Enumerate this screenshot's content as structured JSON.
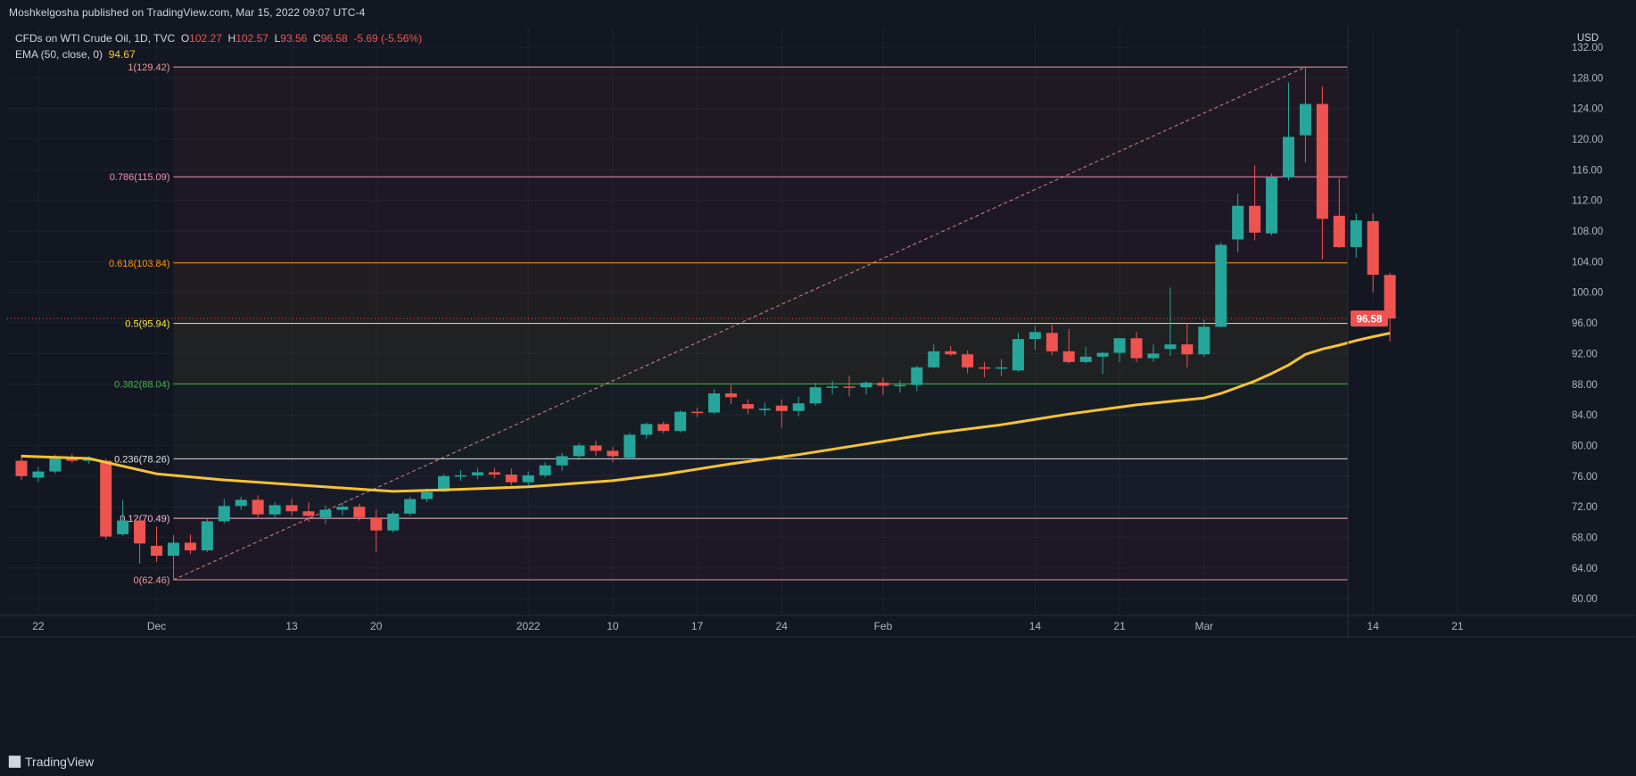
{
  "publisher_line": "Moshkelgosha published on TradingView.com, Mar 15, 2022 09:07 UTC-4",
  "legend": {
    "symbol": "CFDs on WTI Crude Oil, 1D, TVC",
    "open_label": "O",
    "open": "102.27",
    "high_label": "H",
    "high": "102.57",
    "low_label": "L",
    "low": "93.56",
    "close_label": "C",
    "close": "96.58",
    "change": "-5.69 (-5.56%)",
    "ema_label": "EMA (50, close, 0)",
    "ema_value": "94.67"
  },
  "currency": "USD",
  "last_price": "96.58",
  "brand": "TradingView",
  "colors": {
    "background": "#131722",
    "up": "#26a69a",
    "down": "#ef5350",
    "ema": "#f7c234",
    "grid": "#1e222d",
    "text": "#b2b5be"
  },
  "chart_data": {
    "type": "candlestick",
    "title": "",
    "ylim": [
      57.8,
      134.8
    ],
    "yticks": [
      60,
      64,
      68,
      72,
      76,
      80,
      84,
      88,
      92,
      96,
      100,
      104,
      108,
      112,
      116,
      120,
      124,
      128,
      132
    ],
    "xticks": [
      {
        "index": 1,
        "label": "22"
      },
      {
        "index": 8,
        "label": "Dec"
      },
      {
        "index": 16,
        "label": "13"
      },
      {
        "index": 21,
        "label": "20"
      },
      {
        "index": 30,
        "label": "2022"
      },
      {
        "index": 35,
        "label": "10"
      },
      {
        "index": 40,
        "label": "17"
      },
      {
        "index": 45,
        "label": "24"
      },
      {
        "index": 51,
        "label": "Feb"
      },
      {
        "index": 60,
        "label": "14"
      },
      {
        "index": 65,
        "label": "21"
      },
      {
        "index": 70,
        "label": "Mar"
      },
      {
        "index": 80,
        "label": "14"
      },
      {
        "index": 85,
        "label": "21"
      }
    ],
    "candles": [
      {
        "i": 0,
        "o": 78.0,
        "h": 78.8,
        "l": 75.5,
        "c": 76.0
      },
      {
        "i": 1,
        "o": 75.8,
        "h": 77.2,
        "l": 75.2,
        "c": 76.6
      },
      {
        "i": 2,
        "o": 76.6,
        "h": 78.8,
        "l": 76.3,
        "c": 78.4
      },
      {
        "i": 3,
        "o": 78.4,
        "h": 78.9,
        "l": 77.7,
        "c": 78.0
      },
      {
        "i": 4,
        "o": 78.0,
        "h": 78.6,
        "l": 77.6,
        "c": 78.2
      },
      {
        "i": 5,
        "o": 78.0,
        "h": 78.3,
        "l": 67.7,
        "c": 68.1
      },
      {
        "i": 6,
        "o": 68.4,
        "h": 72.9,
        "l": 68.2,
        "c": 70.2
      },
      {
        "i": 7,
        "o": 70.2,
        "h": 70.5,
        "l": 64.6,
        "c": 67.2
      },
      {
        "i": 8,
        "o": 66.9,
        "h": 69.4,
        "l": 64.8,
        "c": 65.6
      },
      {
        "i": 9,
        "o": 65.6,
        "h": 68.3,
        "l": 62.4,
        "c": 67.3
      },
      {
        "i": 10,
        "o": 67.3,
        "h": 68.4,
        "l": 65.8,
        "c": 66.3
      },
      {
        "i": 11,
        "o": 66.3,
        "h": 70.4,
        "l": 66.1,
        "c": 70.1
      },
      {
        "i": 12,
        "o": 70.1,
        "h": 73.0,
        "l": 69.8,
        "c": 72.1
      },
      {
        "i": 13,
        "o": 72.1,
        "h": 73.3,
        "l": 71.6,
        "c": 72.9
      },
      {
        "i": 14,
        "o": 72.9,
        "h": 73.5,
        "l": 70.6,
        "c": 71.0
      },
      {
        "i": 15,
        "o": 71.0,
        "h": 72.6,
        "l": 70.4,
        "c": 72.2
      },
      {
        "i": 16,
        "o": 72.2,
        "h": 73.0,
        "l": 70.8,
        "c": 71.4
      },
      {
        "i": 17,
        "o": 71.4,
        "h": 72.6,
        "l": 70.0,
        "c": 70.8
      },
      {
        "i": 18,
        "o": 70.6,
        "h": 72.2,
        "l": 69.7,
        "c": 71.6
      },
      {
        "i": 19,
        "o": 71.6,
        "h": 72.5,
        "l": 70.9,
        "c": 72.0
      },
      {
        "i": 20,
        "o": 72.0,
        "h": 72.4,
        "l": 70.2,
        "c": 70.6
      },
      {
        "i": 21,
        "o": 70.6,
        "h": 71.6,
        "l": 66.1,
        "c": 68.9
      },
      {
        "i": 22,
        "o": 68.9,
        "h": 71.4,
        "l": 68.6,
        "c": 71.1
      },
      {
        "i": 23,
        "o": 71.1,
        "h": 73.3,
        "l": 70.8,
        "c": 73.0
      },
      {
        "i": 24,
        "o": 73.0,
        "h": 74.4,
        "l": 72.6,
        "c": 73.9
      },
      {
        "i": 25,
        "o": 74.0,
        "h": 76.3,
        "l": 73.9,
        "c": 76.0
      },
      {
        "i": 26,
        "o": 76.0,
        "h": 76.8,
        "l": 75.4,
        "c": 76.1
      },
      {
        "i": 27,
        "o": 76.1,
        "h": 77.1,
        "l": 75.6,
        "c": 76.5
      },
      {
        "i": 28,
        "o": 76.5,
        "h": 77.1,
        "l": 75.7,
        "c": 76.2
      },
      {
        "i": 29,
        "o": 76.2,
        "h": 77.0,
        "l": 74.8,
        "c": 75.2
      },
      {
        "i": 30,
        "o": 75.2,
        "h": 76.6,
        "l": 74.8,
        "c": 76.1
      },
      {
        "i": 31,
        "o": 76.1,
        "h": 77.8,
        "l": 75.8,
        "c": 77.4
      },
      {
        "i": 32,
        "o": 77.4,
        "h": 79.0,
        "l": 76.7,
        "c": 78.6
      },
      {
        "i": 33,
        "o": 78.6,
        "h": 80.3,
        "l": 78.1,
        "c": 80.0
      },
      {
        "i": 34,
        "o": 80.0,
        "h": 80.6,
        "l": 78.6,
        "c": 79.3
      },
      {
        "i": 35,
        "o": 79.3,
        "h": 79.8,
        "l": 77.8,
        "c": 78.6
      },
      {
        "i": 36,
        "o": 78.4,
        "h": 81.6,
        "l": 78.2,
        "c": 81.4
      },
      {
        "i": 37,
        "o": 81.4,
        "h": 83.0,
        "l": 80.9,
        "c": 82.8
      },
      {
        "i": 38,
        "o": 82.8,
        "h": 83.1,
        "l": 81.6,
        "c": 81.9
      },
      {
        "i": 39,
        "o": 81.9,
        "h": 84.6,
        "l": 81.7,
        "c": 84.4
      },
      {
        "i": 40,
        "o": 84.4,
        "h": 84.9,
        "l": 83.7,
        "c": 84.3
      },
      {
        "i": 41,
        "o": 84.3,
        "h": 87.3,
        "l": 84.1,
        "c": 86.8
      },
      {
        "i": 42,
        "o": 86.8,
        "h": 87.9,
        "l": 85.4,
        "c": 86.3
      },
      {
        "i": 43,
        "o": 85.4,
        "h": 86.0,
        "l": 84.1,
        "c": 84.8
      },
      {
        "i": 44,
        "o": 84.6,
        "h": 85.6,
        "l": 83.9,
        "c": 84.8
      },
      {
        "i": 45,
        "o": 85.2,
        "h": 86.0,
        "l": 82.3,
        "c": 84.5
      },
      {
        "i": 46,
        "o": 84.5,
        "h": 86.4,
        "l": 83.8,
        "c": 85.5
      },
      {
        "i": 47,
        "o": 85.5,
        "h": 88.2,
        "l": 85.2,
        "c": 87.6
      },
      {
        "i": 48,
        "o": 87.6,
        "h": 88.4,
        "l": 86.7,
        "c": 87.7
      },
      {
        "i": 49,
        "o": 87.7,
        "h": 89.1,
        "l": 86.4,
        "c": 87.6
      },
      {
        "i": 50,
        "o": 87.6,
        "h": 88.4,
        "l": 86.7,
        "c": 88.2
      },
      {
        "i": 51,
        "o": 88.2,
        "h": 88.9,
        "l": 86.6,
        "c": 87.8
      },
      {
        "i": 52,
        "o": 87.8,
        "h": 88.5,
        "l": 86.9,
        "c": 87.9
      },
      {
        "i": 53,
        "o": 87.9,
        "h": 90.4,
        "l": 87.1,
        "c": 90.2
      },
      {
        "i": 54,
        "o": 90.2,
        "h": 93.2,
        "l": 90.1,
        "c": 92.3
      },
      {
        "i": 55,
        "o": 92.3,
        "h": 93.0,
        "l": 91.7,
        "c": 91.9
      },
      {
        "i": 56,
        "o": 91.9,
        "h": 92.4,
        "l": 89.4,
        "c": 90.2
      },
      {
        "i": 57,
        "o": 90.2,
        "h": 90.9,
        "l": 88.9,
        "c": 90.1
      },
      {
        "i": 58,
        "o": 90.1,
        "h": 91.3,
        "l": 89.1,
        "c": 90.2
      },
      {
        "i": 59,
        "o": 89.8,
        "h": 94.7,
        "l": 89.6,
        "c": 93.9
      },
      {
        "i": 60,
        "o": 93.9,
        "h": 95.6,
        "l": 92.5,
        "c": 94.8
      },
      {
        "i": 61,
        "o": 94.7,
        "h": 95.8,
        "l": 91.8,
        "c": 92.3
      },
      {
        "i": 62,
        "o": 92.3,
        "h": 95.2,
        "l": 90.7,
        "c": 90.9
      },
      {
        "i": 63,
        "o": 90.9,
        "h": 92.9,
        "l": 90.7,
        "c": 91.6
      },
      {
        "i": 64,
        "o": 91.6,
        "h": 92.2,
        "l": 89.3,
        "c": 92.1
      },
      {
        "i": 65,
        "o": 92.1,
        "h": 94.0,
        "l": 90.9,
        "c": 94.0
      },
      {
        "i": 66,
        "o": 94.0,
        "h": 94.8,
        "l": 90.9,
        "c": 91.4
      },
      {
        "i": 67,
        "o": 91.4,
        "h": 93.2,
        "l": 90.9,
        "c": 92.0
      },
      {
        "i": 68,
        "o": 92.6,
        "h": 100.6,
        "l": 91.7,
        "c": 93.2
      },
      {
        "i": 69,
        "o": 93.2,
        "h": 96.0,
        "l": 90.2,
        "c": 91.9
      },
      {
        "i": 70,
        "o": 91.9,
        "h": 96.4,
        "l": 91.6,
        "c": 95.5
      },
      {
        "i": 71,
        "o": 95.5,
        "h": 106.5,
        "l": 95.4,
        "c": 106.2
      },
      {
        "i": 72,
        "o": 106.9,
        "h": 112.9,
        "l": 105.2,
        "c": 111.3
      },
      {
        "i": 73,
        "o": 111.3,
        "h": 116.6,
        "l": 106.8,
        "c": 107.8
      },
      {
        "i": 74,
        "o": 107.7,
        "h": 115.5,
        "l": 107.4,
        "c": 115.0
      },
      {
        "i": 75,
        "o": 115.0,
        "h": 127.4,
        "l": 114.6,
        "c": 120.3
      },
      {
        "i": 76,
        "o": 120.5,
        "h": 129.4,
        "l": 117.0,
        "c": 124.6
      },
      {
        "i": 77,
        "o": 124.6,
        "h": 126.9,
        "l": 104.3,
        "c": 109.6
      },
      {
        "i": 78,
        "o": 110.0,
        "h": 114.9,
        "l": 105.8,
        "c": 105.9
      },
      {
        "i": 79,
        "o": 105.9,
        "h": 110.3,
        "l": 104.5,
        "c": 109.4
      },
      {
        "i": 80,
        "o": 109.3,
        "h": 110.3,
        "l": 100.0,
        "c": 102.3
      },
      {
        "i": 81,
        "o": 102.27,
        "h": 102.57,
        "l": 93.56,
        "c": 96.58
      }
    ],
    "ema": [
      [
        0,
        78.6
      ],
      [
        4,
        78.3
      ],
      [
        8,
        76.3
      ],
      [
        12,
        75.5
      ],
      [
        16,
        74.9
      ],
      [
        20,
        74.3
      ],
      [
        22,
        74.0
      ],
      [
        25,
        74.2
      ],
      [
        30,
        74.6
      ],
      [
        35,
        75.4
      ],
      [
        38,
        76.2
      ],
      [
        42,
        77.6
      ],
      [
        46,
        78.8
      ],
      [
        50,
        80.2
      ],
      [
        54,
        81.6
      ],
      [
        58,
        82.7
      ],
      [
        62,
        84.1
      ],
      [
        66,
        85.3
      ],
      [
        70,
        86.2
      ],
      [
        71,
        86.8
      ],
      [
        73,
        88.4
      ],
      [
        74,
        89.4
      ],
      [
        75,
        90.5
      ],
      [
        76,
        91.9
      ],
      [
        77,
        92.6
      ],
      [
        78,
        93.1
      ],
      [
        79,
        93.7
      ],
      [
        80,
        94.2
      ],
      [
        81,
        94.67
      ]
    ],
    "fib": [
      {
        "label": "1(129.42)",
        "value": 129.42,
        "color": "#ef9a9a",
        "fill": "rgba(244,67,54,0.06)"
      },
      {
        "label": "0.786(115.09)",
        "value": 115.09,
        "color": "#f48fb1",
        "fill": "rgba(233,30,99,0.05)"
      },
      {
        "label": "0.618(103.84)",
        "value": 103.84,
        "color": "#ff9800",
        "fill": "rgba(255,152,0,0.06)"
      },
      {
        "label": "0.5(95.94)",
        "value": 95.94,
        "color": "#ffeb3b",
        "fill": "rgba(255,235,59,0.05)"
      },
      {
        "label": "0.382(88.04)",
        "value": 88.04,
        "color": "#4caf50",
        "fill": "rgba(76,175,80,0.05)"
      },
      {
        "label": "0.236(78.26)",
        "value": 78.26,
        "color": "#e0e0e0",
        "fill": "rgba(120,120,140,0.06)"
      },
      {
        "label": "0.12(70.49)",
        "value": 70.49,
        "color": "#f8bbd0",
        "fill": "rgba(233,30,99,0.05)"
      },
      {
        "label": "0(62.46)",
        "value": 62.46,
        "color": "#ef9a9a",
        "fill": "rgba(244,67,54,0.05)"
      }
    ],
    "trend_line": {
      "from": {
        "i": 9,
        "v": 62.46
      },
      "to": {
        "i": 76,
        "v": 129.42
      }
    },
    "grid": true
  }
}
